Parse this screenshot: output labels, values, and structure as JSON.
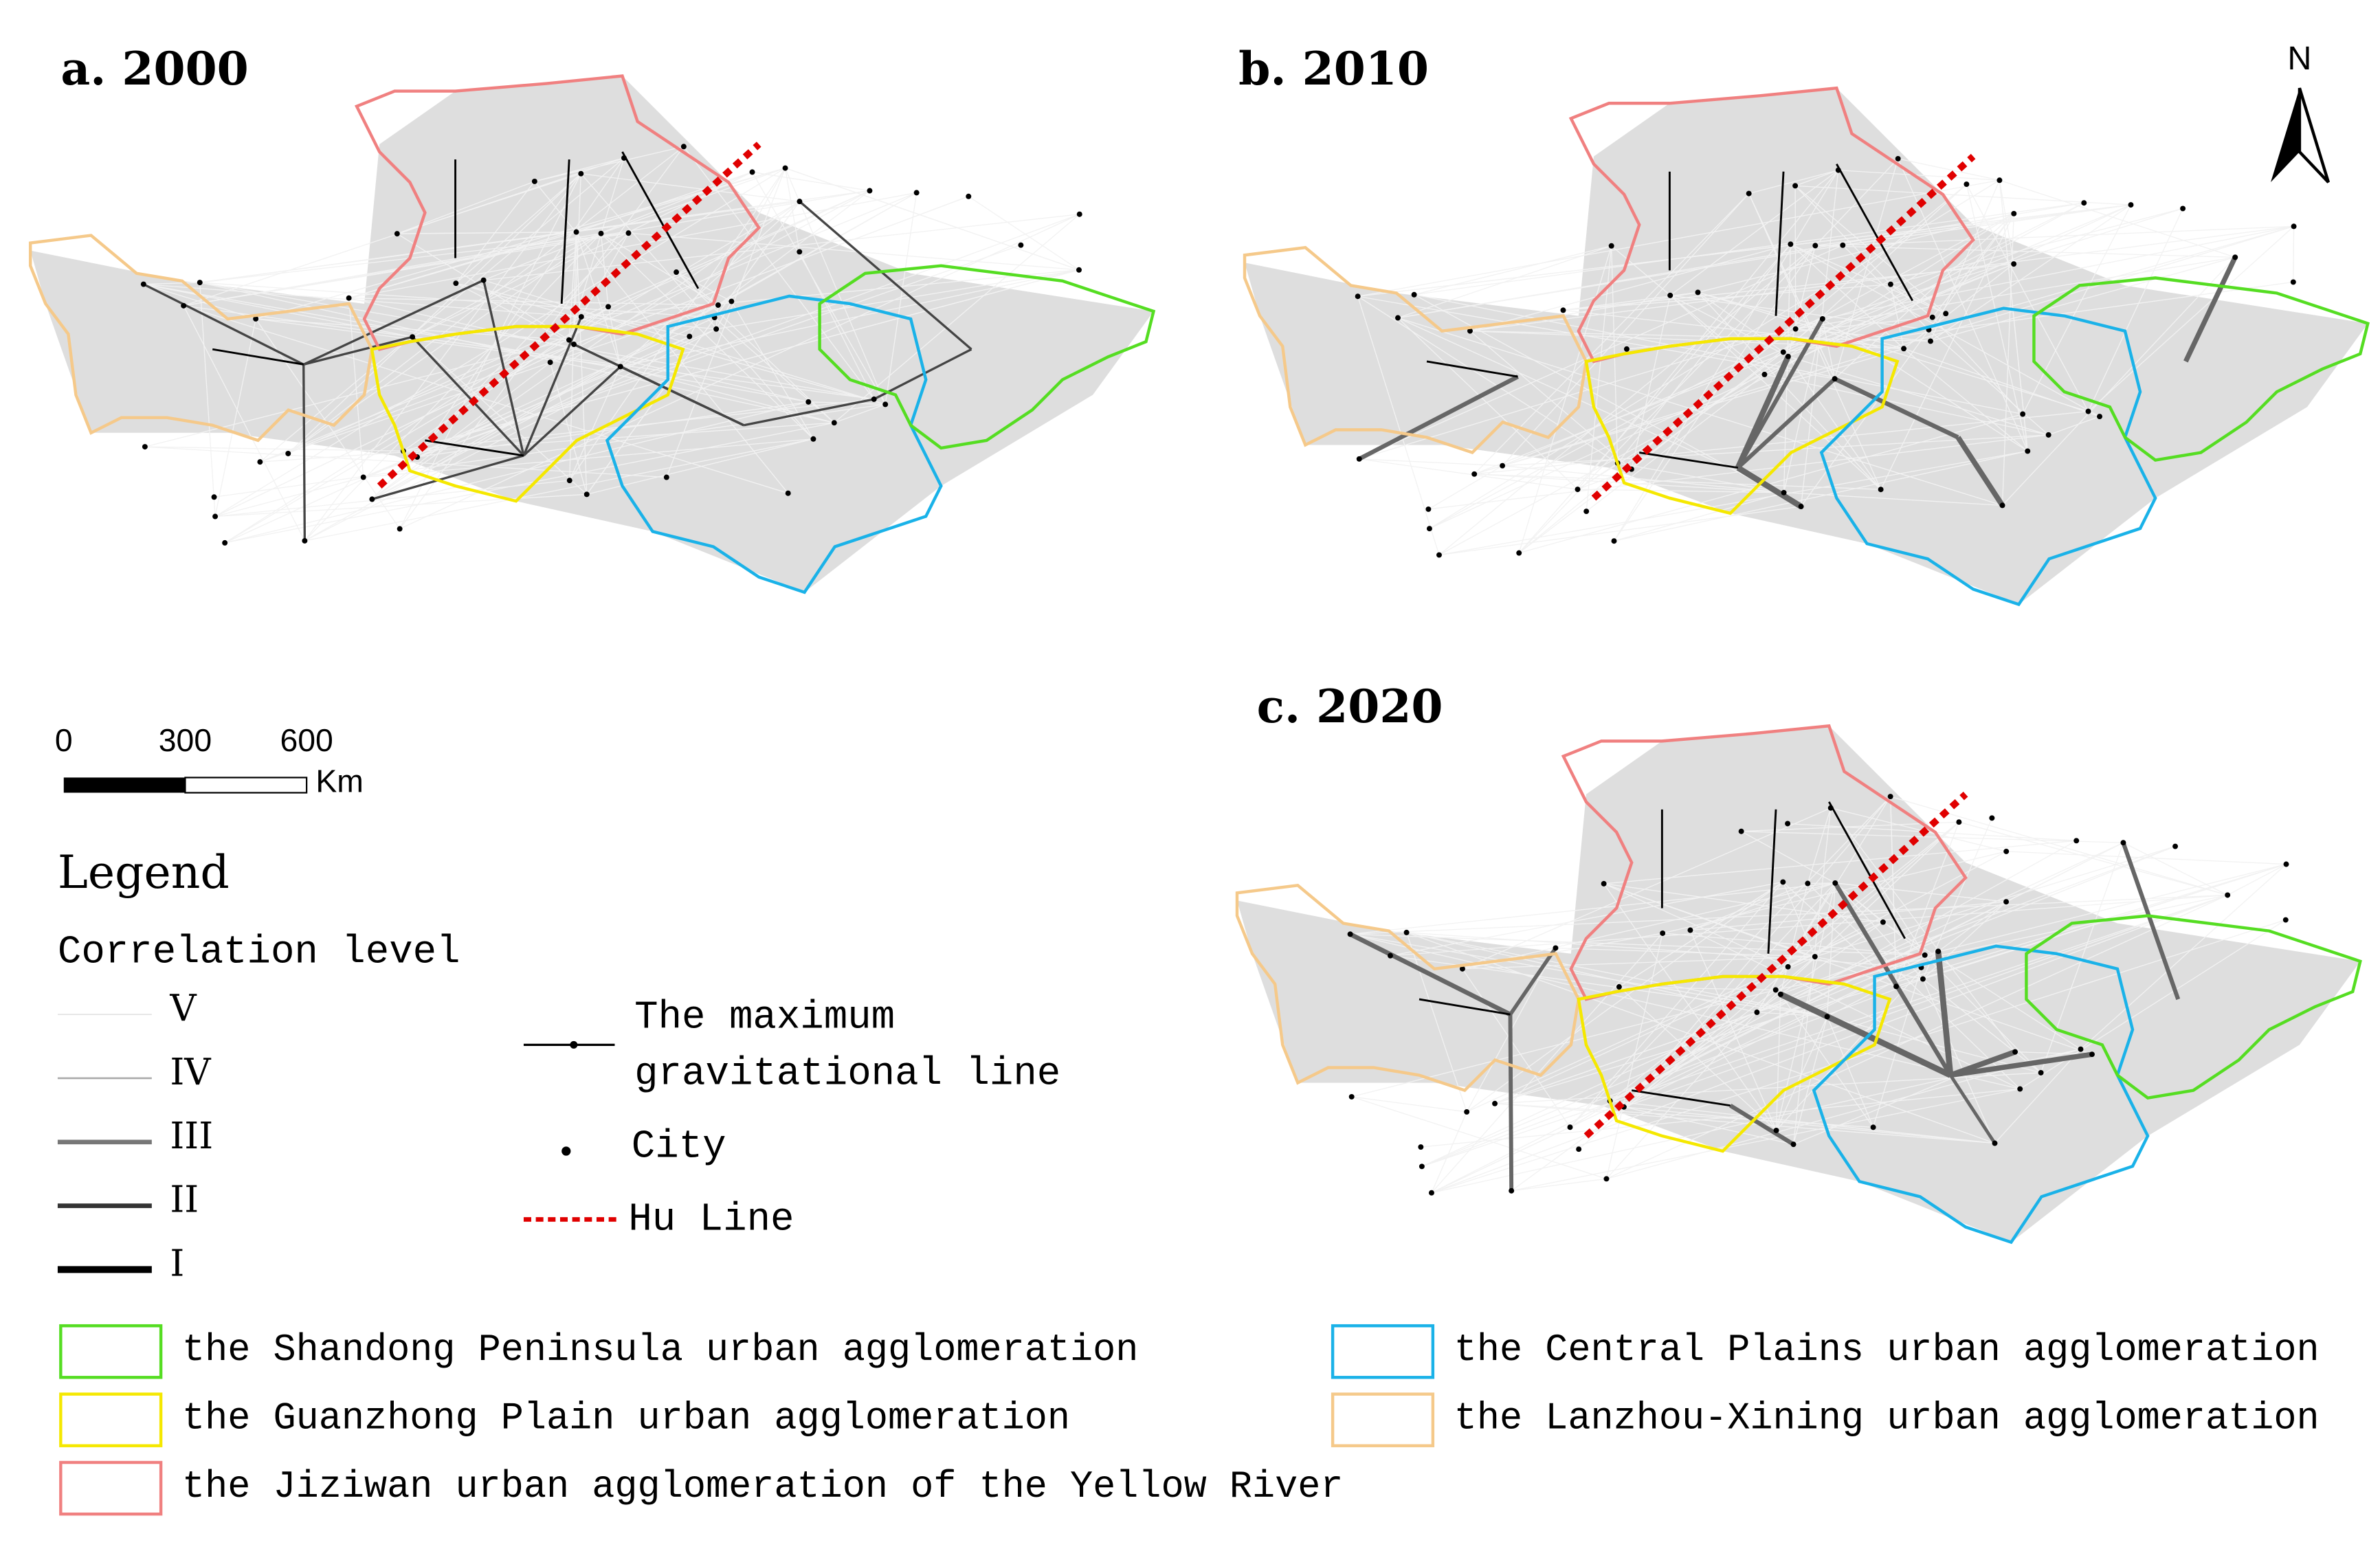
{
  "panels": [
    {
      "label": "a. 2000"
    },
    {
      "label": "b. 2010"
    },
    {
      "label": "c. 2020"
    }
  ],
  "north": "N",
  "scale_bar": {
    "ticks": [
      0,
      300,
      600
    ],
    "unit": "Km"
  },
  "legend": {
    "title": "Legend",
    "subtitle": "Correlation level",
    "levels": [
      "V",
      "IV",
      "III",
      "II",
      "I"
    ],
    "max_line": [
      "The maximum",
      "gravitational line"
    ],
    "city": "City",
    "hu_line": "Hu Line",
    "regions": [
      {
        "label": "the Shandong Peninsula urban agglomeration",
        "color": "#55dd22"
      },
      {
        "label": "the Guanzhong Plain urban agglomeration",
        "color": "#f5e800"
      },
      {
        "label": "the Jiziwan urban agglomeration of the Yellow River",
        "color": "#f08080"
      },
      {
        "label": "the Central Plains urban agglomeration",
        "color": "#1ab2e8"
      },
      {
        "label": "the Lanzhou-Xining urban agglomeration",
        "color": "#f5c98a"
      }
    ]
  }
}
